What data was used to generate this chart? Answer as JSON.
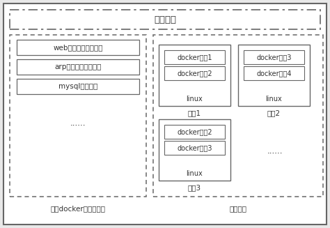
{
  "title": "蜜罐中心",
  "left_section_label": "基于docker的镜像模板",
  "right_section_label": "蜜罐集群",
  "left_boxes": [
    "web渗透检测服务模拟",
    "arp欺骗检测服务模拟",
    "mysql服务模拟"
  ],
  "left_dots": "......",
  "honeypot1_label": "蜜罐1",
  "honeypot1_boxes": [
    "docker服务1",
    "docker服务2"
  ],
  "honeypot1_bottom": "linux",
  "honeypot2_label": "蜜罐2",
  "honeypot2_boxes": [
    "docker服务3",
    "docker服务4"
  ],
  "honeypot2_bottom": "linux",
  "honeypot3_label": "蜜罐3",
  "honeypot3_boxes": [
    "docker服务2",
    "docker服务3"
  ],
  "honeypot3_bottom": "linux",
  "right_dots": "......",
  "bg_color": "#ffffff",
  "outer_bg": "#e8e8e8",
  "box_fill": "#ffffff",
  "border_color": "#666666",
  "text_color": "#333333",
  "font_size": 7.5,
  "title_font_size": 9.5
}
